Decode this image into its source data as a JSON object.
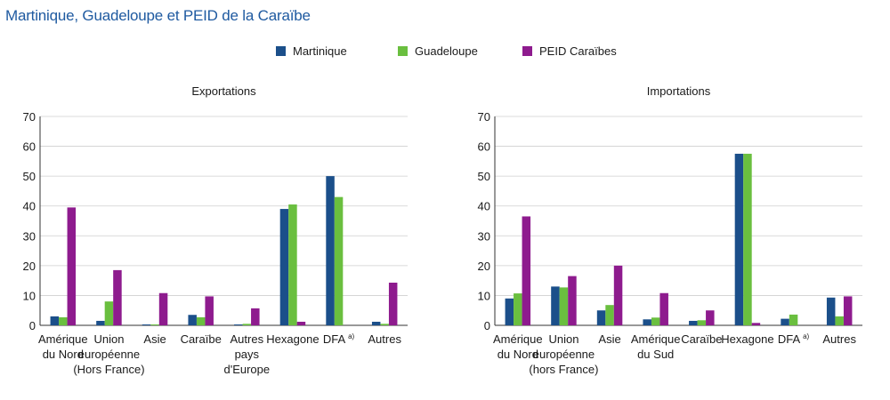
{
  "figure_title": "Martinique, Guadeloupe et PEID de la Caraïbe",
  "legend": [
    {
      "name": "Martinique",
      "color": "#1b4f8a"
    },
    {
      "name": "Guadeloupe",
      "color": "#6abf3f"
    },
    {
      "name": "PEID Caraïbes",
      "color": "#8e1b8e"
    }
  ],
  "chart_data": [
    {
      "type": "bar",
      "title": "Exportations",
      "categories": [
        [
          "Amérique",
          "du Nord"
        ],
        [
          "Union",
          "européenne",
          "(Hors France)"
        ],
        [
          "Asie"
        ],
        [
          "Caraïbe"
        ],
        [
          "Autres",
          "pays",
          "d'Europe"
        ],
        [
          "Hexagone"
        ],
        [
          "DFA a)"
        ],
        [
          "Autres"
        ]
      ],
      "series": [
        {
          "name": "Martinique",
          "values": [
            3,
            1.5,
            0.3,
            3.5,
            0.3,
            39,
            50,
            1.2
          ]
        },
        {
          "name": "Guadeloupe",
          "values": [
            2.7,
            8,
            0.3,
            2.7,
            0.5,
            40.5,
            43,
            0.5
          ]
        },
        {
          "name": "PEID Caraïbes",
          "values": [
            39.5,
            18.5,
            10.8,
            9.7,
            5.7,
            1.2,
            0,
            14.3
          ]
        }
      ],
      "y_ticks": [
        "0",
        "10",
        "20",
        "30",
        "40",
        "50",
        "60",
        "70"
      ],
      "ylim": [
        0,
        70
      ],
      "grid": true
    },
    {
      "type": "bar",
      "title": "Importations",
      "categories": [
        [
          "Amérique",
          "du Nord"
        ],
        [
          "Union",
          "européenne",
          "(hors France)"
        ],
        [
          "Asie"
        ],
        [
          "Amérique",
          "du Sud"
        ],
        [
          "Caraïbe"
        ],
        [
          "Hexagone"
        ],
        [
          "DFA a)"
        ],
        [
          "Autres"
        ]
      ],
      "series": [
        {
          "name": "Martinique",
          "values": [
            9,
            13,
            5,
            2,
            1.5,
            57.5,
            2.2,
            9.3
          ]
        },
        {
          "name": "Guadeloupe",
          "values": [
            10.7,
            12.7,
            6.8,
            2.6,
            1.7,
            57.5,
            3.6,
            3
          ]
        },
        {
          "name": "PEID Caraïbes",
          "values": [
            36.5,
            16.5,
            20,
            10.8,
            5,
            0.8,
            0,
            9.7
          ]
        }
      ],
      "y_ticks": [
        "0",
        "10",
        "20",
        "30",
        "40",
        "50",
        "60",
        "70"
      ],
      "ylim": [
        0,
        70
      ],
      "grid": true
    }
  ]
}
